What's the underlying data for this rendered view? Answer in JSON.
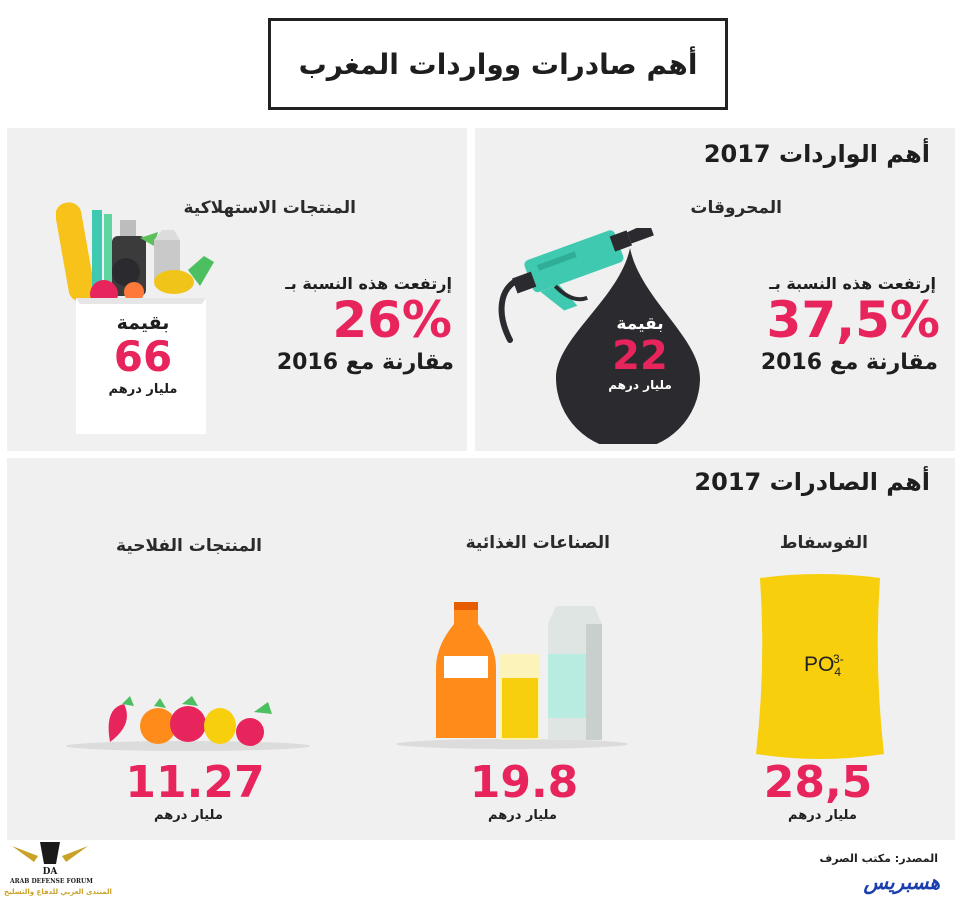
{
  "main_title": "أهم صادرات وواردات المغرب",
  "imports": {
    "section_title": "أهم الواردات 2017",
    "fuels": {
      "label": "المحروقات",
      "rise_text": "إرتفعت هذه النسبة بـ",
      "percent": "37,5%",
      "compare": "مقارنة مع 2016",
      "value_prefix": "بقيمة",
      "value": "22",
      "unit": "مليار درهم"
    },
    "consumer": {
      "label": "المنتجات الاستهلاكية",
      "rise_text": "إرتفعت هذه النسبة بـ",
      "percent": "26%",
      "compare": "مقارنة مع 2016",
      "value_prefix": "بقيمة",
      "value": "66",
      "unit": "مليار درهم"
    }
  },
  "exports": {
    "section_title": "أهم  الصادرات 2017",
    "phosphate": {
      "label": "الفوسفاط",
      "value": "28,5",
      "unit": "مليار درهم",
      "formula_main": "PO",
      "formula_sub": "4",
      "formula_sup": "3-"
    },
    "food": {
      "label": "الصناعات الغذائية",
      "value": "19.8",
      "unit": "مليار درهم"
    },
    "agri": {
      "label": "المنتجات الفلاحية",
      "value": "11.27",
      "unit": "مليار درهم"
    }
  },
  "footer": {
    "source": "المصدر: مكتب الصرف",
    "brand": "هسبريس",
    "watermark_title": "ARAB DEFENSE FORUM",
    "watermark_sub": "المنتدى العربي للدفاع والتسليح"
  },
  "colors": {
    "accent_pink": "#e8245c",
    "dark": "#222222",
    "panel_bg": "#f0f0f0",
    "phosphate_yellow": "#f7cf0d",
    "pump_teal": "#3ec9b0",
    "drop_dark": "#2b2b2f",
    "brand_blue": "#1b3fae"
  }
}
